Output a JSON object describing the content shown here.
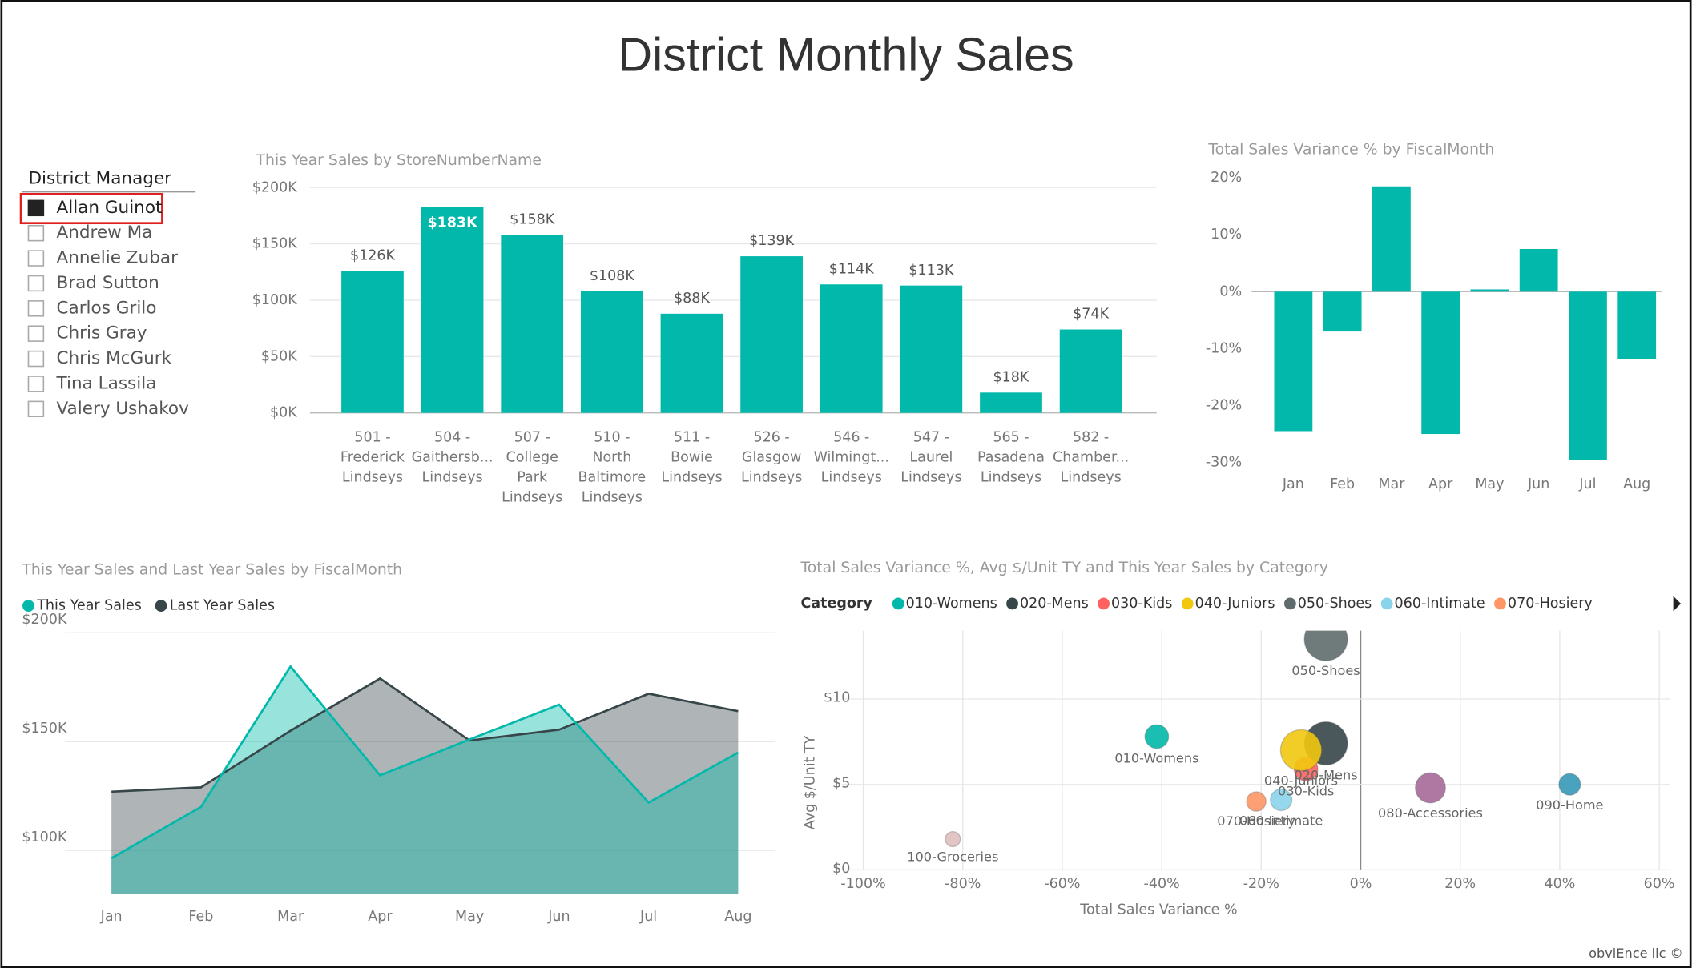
{
  "title": "District Monthly Sales",
  "slicer": {
    "title": "District Manager",
    "items": [
      {
        "label": "Allan Guinot",
        "selected": true
      },
      {
        "label": "Andrew Ma",
        "selected": false
      },
      {
        "label": "Annelie Zubar",
        "selected": false
      },
      {
        "label": "Brad Sutton",
        "selected": false
      },
      {
        "label": "Carlos Grilo",
        "selected": false
      },
      {
        "label": "Chris Gray",
        "selected": false
      },
      {
        "label": "Chris McGurk",
        "selected": false
      },
      {
        "label": "Tina Lassila",
        "selected": false
      },
      {
        "label": "Valery Ushakov",
        "selected": false
      }
    ]
  },
  "chart_data": [
    {
      "type": "bar",
      "title": "This Year Sales by StoreNumberName",
      "categories": [
        [
          "501 -",
          "Frederick",
          "Lindseys"
        ],
        [
          "504 -",
          "Gaithersb...",
          "Lindseys"
        ],
        [
          "507 -",
          "College",
          "Park",
          "Lindseys"
        ],
        [
          "510 -",
          "North",
          "Baltimore",
          "Lindseys"
        ],
        [
          "511 -",
          "Bowie",
          "Lindseys"
        ],
        [
          "526 -",
          "Glasgow",
          "Lindseys"
        ],
        [
          "546 -",
          "Wilmingt...",
          "Lindseys"
        ],
        [
          "547 -",
          "Laurel",
          "Lindseys"
        ],
        [
          "565 -",
          "Pasadena",
          "Lindseys"
        ],
        [
          "582 -",
          "Chamber...",
          "Lindseys"
        ]
      ],
      "values": [
        126000,
        183000,
        158000,
        108000,
        88000,
        139000,
        114000,
        113000,
        18000,
        74000
      ],
      "value_labels": [
        "$126K",
        "$183K",
        "$158K",
        "$108K",
        "$88K",
        "$139K",
        "$114K",
        "$113K",
        "$18K",
        "$74K"
      ],
      "color": "#01b8aa",
      "ylim": [
        0,
        200000
      ],
      "yticks": [
        {
          "value": 0,
          "label": "$0K"
        },
        {
          "value": 50000,
          "label": "$50K"
        },
        {
          "value": 100000,
          "label": "$100K"
        },
        {
          "value": 150000,
          "label": "$150K"
        },
        {
          "value": 200000,
          "label": "$200K"
        }
      ],
      "grid": true
    },
    {
      "type": "bar",
      "title": "Total Sales Variance % by FiscalMonth",
      "categories": [
        "Jan",
        "Feb",
        "Mar",
        "Apr",
        "May",
        "Jun",
        "Jul",
        "Aug"
      ],
      "values": [
        -24.5,
        -7,
        18.5,
        -25,
        0.4,
        7.5,
        -29.5,
        -11.8
      ],
      "color": "#01b8aa",
      "ylim": [
        -31,
        21
      ],
      "yticks": [
        {
          "value": -30,
          "label": "-30%"
        },
        {
          "value": -20,
          "label": "-20%"
        },
        {
          "value": -10,
          "label": "-10%"
        },
        {
          "value": 0,
          "label": "0%"
        },
        {
          "value": 10,
          "label": "10%"
        },
        {
          "value": 20,
          "label": "20%"
        }
      ],
      "grid": false
    },
    {
      "type": "area",
      "title": "This Year Sales and Last Year Sales by FiscalMonth",
      "categories": [
        "Jan",
        "Feb",
        "Mar",
        "Apr",
        "May",
        "Jun",
        "Jul",
        "Aug"
      ],
      "series": [
        {
          "name": "This Year Sales",
          "color": "#01b8aa",
          "values": [
            96500,
            120000,
            184500,
            134500,
            151000,
            167000,
            122000,
            145000
          ]
        },
        {
          "name": "Last Year Sales",
          "color": "#374649",
          "values": [
            127000,
            129000,
            155000,
            179000,
            150500,
            155500,
            172000,
            164000
          ]
        }
      ],
      "ylim": [
        80000,
        200000
      ],
      "yticks": [
        {
          "value": 100000,
          "label": "$100K"
        },
        {
          "value": 150000,
          "label": "$150K"
        },
        {
          "value": 200000,
          "label": "$200K"
        }
      ],
      "grid": true
    },
    {
      "type": "scatter",
      "title": "Total Sales Variance %, Avg $/Unit TY and This Year Sales by Category",
      "legend_title": "Category",
      "x_label": "Total Sales Variance %",
      "y_label": "Avg $/Unit TY",
      "series": [
        {
          "name": "010-Womens",
          "color": "#01b8aa",
          "x": [
            -41
          ],
          "values": [
            7.8
          ],
          "sizes": [
            242000
          ]
        },
        {
          "name": "020-Mens",
          "color": "#374649",
          "x": [
            -7
          ],
          "values": [
            7.4
          ],
          "sizes": [
            800000
          ]
        },
        {
          "name": "030-Kids",
          "color": "#fd625e",
          "x": [
            -11
          ],
          "values": [
            5.9
          ],
          "sizes": [
            242000
          ]
        },
        {
          "name": "040-Juniors",
          "color": "#f2c80f",
          "x": [
            -12
          ],
          "values": [
            7.0
          ],
          "sizes": [
            722000
          ]
        },
        {
          "name": "050-Shoes",
          "color": "#5f6b6d",
          "x": [
            -7
          ],
          "values": [
            13.5
          ],
          "sizes": [
            800000
          ]
        },
        {
          "name": "060-Intimate",
          "color": "#8ad4eb",
          "x": [
            -16
          ],
          "values": [
            4.1
          ],
          "sizes": [
            200000
          ]
        },
        {
          "name": "070-Hosiery",
          "color": "#fe9666",
          "x": [
            -21
          ],
          "values": [
            4.0
          ],
          "sizes": [
            162000
          ]
        },
        {
          "name": "080-Accessories",
          "color": "#a66999",
          "x": [
            14
          ],
          "values": [
            4.8
          ],
          "sizes": [
            392000
          ]
        },
        {
          "name": "090-Home",
          "color": "#3599b8",
          "x": [
            42
          ],
          "values": [
            5.0
          ],
          "sizes": [
            200000
          ]
        },
        {
          "name": "100-Groceries",
          "color": "#dfbfbf",
          "x": [
            -82
          ],
          "values": [
            1.8
          ],
          "sizes": [
            98000
          ]
        }
      ],
      "xlim": [
        -100,
        60
      ],
      "xticks": [
        {
          "value": -100,
          "label": "-100%"
        },
        {
          "value": -80,
          "label": "-80%"
        },
        {
          "value": -60,
          "label": "-60%"
        },
        {
          "value": -40,
          "label": "-40%"
        },
        {
          "value": -20,
          "label": "-20%"
        },
        {
          "value": 0,
          "label": "0%"
        },
        {
          "value": 20,
          "label": "20%"
        },
        {
          "value": 40,
          "label": "40%"
        },
        {
          "value": 60,
          "label": "60%"
        }
      ],
      "ylim": [
        0,
        14
      ],
      "yticks": [
        {
          "value": 0,
          "label": "$0"
        },
        {
          "value": 5,
          "label": "$5"
        },
        {
          "value": 10,
          "label": "$10"
        }
      ],
      "grid": true
    }
  ],
  "footer": "obviEnce llc ©"
}
